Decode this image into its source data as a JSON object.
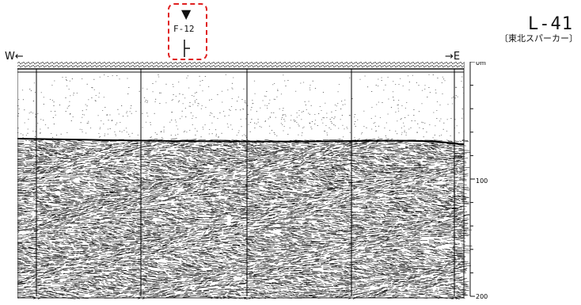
{
  "header": {
    "line_id": "L-41",
    "survey_note": "〔東北スパーカー〕",
    "west_label": "W←",
    "east_label": "→E"
  },
  "fault_marker": {
    "label": "F-12",
    "triangle": "▼",
    "highlight_color": "#e02020"
  },
  "depth_scale": {
    "ticks": [
      "0m",
      "100",
      "200"
    ]
  },
  "shot_points": [
    "5 5",
    "5 5",
    "5 5",
    "5 5",
    "5 5"
  ],
  "colors": {
    "ink": "#111111",
    "paper": "#ffffff"
  }
}
